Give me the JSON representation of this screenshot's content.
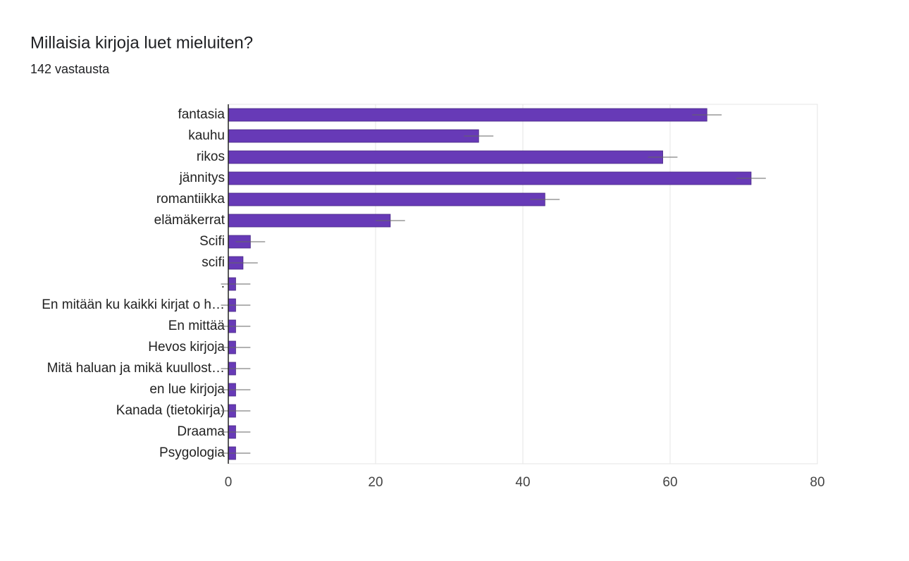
{
  "chart_data": {
    "type": "bar",
    "orientation": "horizontal",
    "title": "Millaisia kirjoja luet mieluiten?",
    "subtitle": "142 vastausta",
    "categories": [
      "fantasia",
      "kauhu",
      "rikos",
      "jännitys",
      "romantiikka",
      "elämäkerrat",
      "Scifi",
      "scifi",
      ".",
      "En mitään ku kaikki kirjat o h…",
      "En mittää",
      "Hevos kirjoja",
      "Mitä haluan ja mikä kuullost…",
      "en lue kirjoja",
      "Kanada (tietokirja)",
      "Draama",
      "Psygologia"
    ],
    "values": [
      65,
      34,
      59,
      71,
      43,
      22,
      3,
      2,
      1,
      1,
      1,
      1,
      1,
      1,
      1,
      1,
      1
    ],
    "errors": [
      2,
      2,
      2,
      2,
      2,
      2,
      2,
      2,
      2,
      2,
      2,
      2,
      2,
      2,
      2,
      2,
      2
    ],
    "color": "#673ab7",
    "xlim": [
      0,
      80
    ],
    "xticks": [
      0,
      20,
      40,
      60,
      80
    ],
    "grid": true
  }
}
